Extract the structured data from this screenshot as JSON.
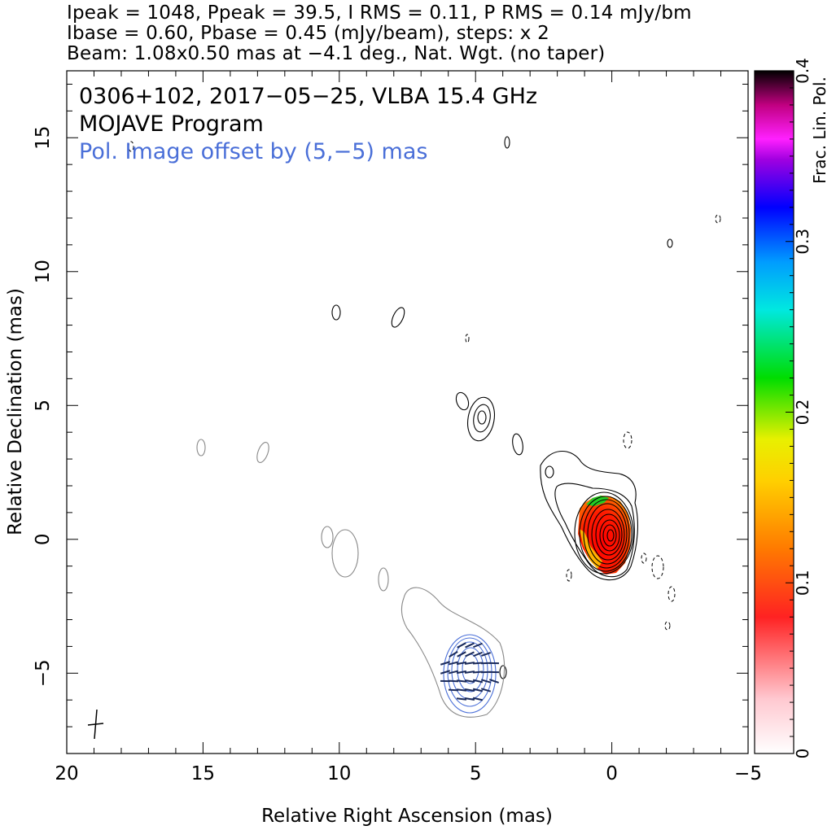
{
  "header": {
    "line1": "Ipeak = 1048, Ppeak = 39.5, I RMS = 0.11, P RMS = 0.14 mJy/bm",
    "line2": "Ibase = 0.60, Pbase = 0.45 (mJy/beam), steps: x 2",
    "line3": "Beam: 1.08x0.50 mas at −4.1 deg., Nat. Wgt. (no taper)"
  },
  "annotations": {
    "source": "0306+102, 2017−05−25, VLBA 15.4 GHz",
    "program": "MOJAVE Program",
    "offset_note": "Pol. Image offset by (5,−5) mas"
  },
  "chart_data": {
    "type": "contour",
    "xlabel": "Relative Right Ascension (mas)",
    "ylabel": "Relative Declination (mas)",
    "xlim": [
      20,
      -5
    ],
    "ylim": [
      -8,
      17.5
    ],
    "x_ticks": [
      20,
      15,
      10,
      5,
      0,
      -5
    ],
    "x_tick_labels": [
      "20",
      "15",
      "10",
      "5",
      "0",
      "−5"
    ],
    "y_ticks": [
      -5,
      0,
      5,
      10,
      15
    ],
    "y_tick_labels": [
      "−5",
      "0",
      "5",
      "10",
      "15"
    ],
    "colorbar": {
      "label": "Frac. Lin. Pol.",
      "range": [
        0,
        0.4
      ],
      "ticks": [
        0,
        0.1,
        0.2,
        0.3,
        0.4
      ],
      "tick_labels": [
        "0",
        "0.1",
        "0.2",
        "0.3",
        "0.4"
      ]
    },
    "stokes_i": {
      "peak_mJy_per_beam": 1048,
      "rms_mJy_per_beam": 0.11,
      "base_contour_mJy_per_beam": 0.6,
      "contour_step_factor": 2,
      "core_position_mas": [
        0,
        0
      ]
    },
    "polarization": {
      "peak_mJy_per_beam": 39.5,
      "rms_mJy_per_beam": 0.14,
      "base_contour_mJy_per_beam": 0.45,
      "image_offset_mas": [
        5,
        -5
      ]
    },
    "beam": {
      "major_mas": 1.08,
      "minor_mas": 0.5,
      "pa_deg": -4.1,
      "weighting": "Nat. Wgt. (no taper)"
    },
    "colors": {
      "contour": "#000000",
      "low_contour": "#888888",
      "pol_contour": "#4a6fd8",
      "vectors": "#1a2a5a"
    }
  }
}
